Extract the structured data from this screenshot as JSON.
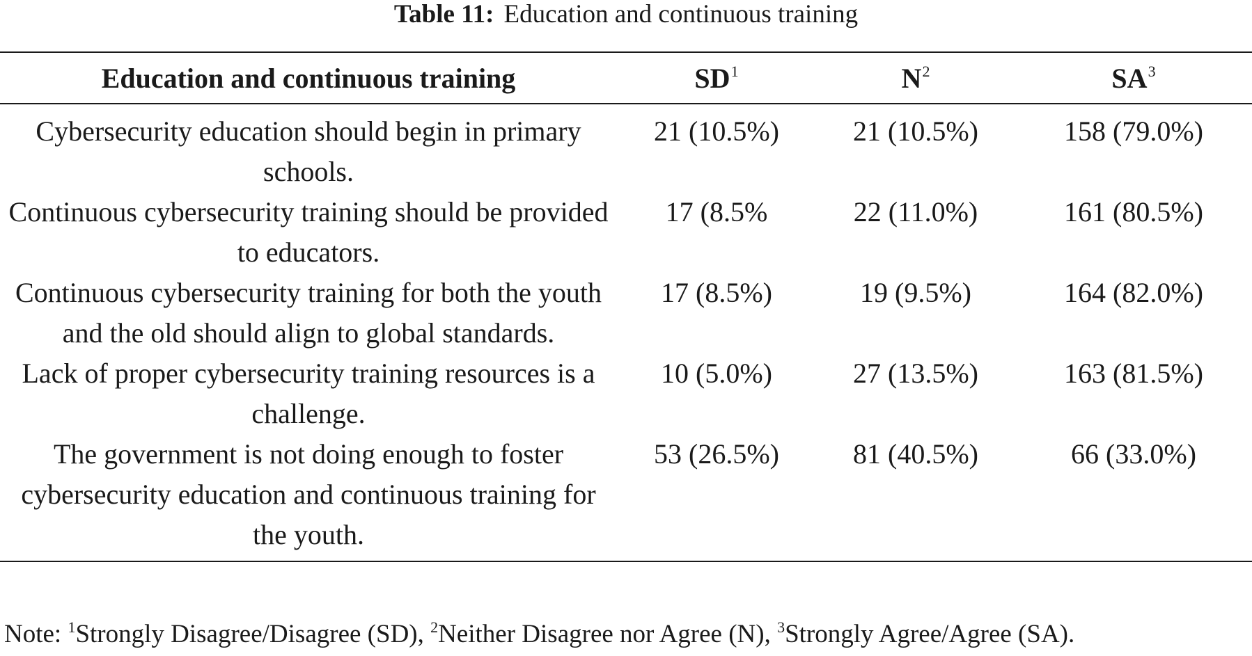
{
  "caption": {
    "label": "Table 11:",
    "title": "Education and continuous training"
  },
  "table": {
    "columns": [
      {
        "label": "Education and continuous training",
        "sup": ""
      },
      {
        "label": "SD",
        "sup": "1"
      },
      {
        "label": "N",
        "sup": "2"
      },
      {
        "label": "SA",
        "sup": "3"
      }
    ],
    "rows": [
      {
        "statement": "Cybersecurity education should begin in primary schools.",
        "sd": "21 (10.5%)",
        "n": "21 (10.5%)",
        "sa": "158 (79.0%)"
      },
      {
        "statement": "Continuous cybersecurity training should be provided to educators.",
        "sd": "17 (8.5%",
        "n": "22 (11.0%)",
        "sa": "161 (80.5%)"
      },
      {
        "statement": "Continuous cybersecurity training for both the youth and the old should align to global standards.",
        "sd": "17 (8.5%)",
        "n": "19 (9.5%)",
        "sa": "164 (82.0%)"
      },
      {
        "statement": "Lack of proper cybersecurity training resources is a challenge.",
        "sd": "10 (5.0%)",
        "n": "27 (13.5%)",
        "sa": "163 (81.5%)"
      },
      {
        "statement": "The government is not doing enough to foster cybersecurity education and continuous training for the youth.",
        "sd": "53 (26.5%)",
        "n": "81 (40.5%)",
        "sa": "66 (33.0%)"
      }
    ]
  },
  "note": {
    "prefix": "Note: ",
    "items": [
      {
        "sup": "1",
        "text": "Strongly Disagree/Disagree (SD), "
      },
      {
        "sup": "2",
        "text": "Neither Disagree nor Agree (N), "
      },
      {
        "sup": "3",
        "text": "Strongly Agree/Agree (SA)."
      }
    ]
  }
}
